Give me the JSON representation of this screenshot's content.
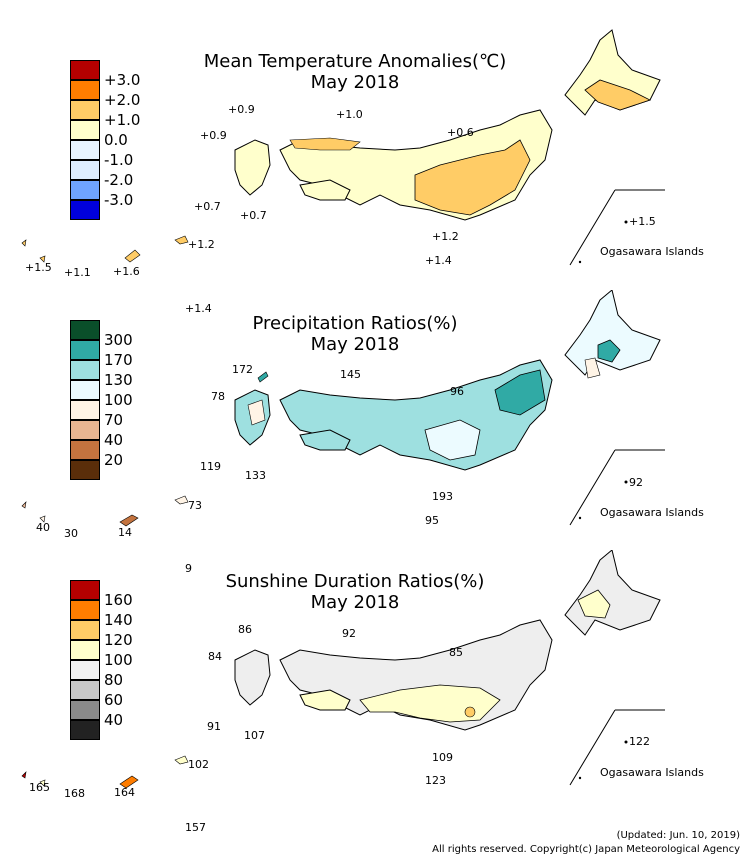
{
  "panels": [
    {
      "title_line1": "Mean Temperature Anomalies(℃)",
      "title_line2": "May 2018",
      "legend": [
        {
          "label": "+3.0",
          "color": "#b40000"
        },
        {
          "label": "+2.0",
          "color": "#ff7d00"
        },
        {
          "label": "+1.0",
          "color": "#ffcc66"
        },
        {
          "label": "0.0",
          "color": "#ffffcc"
        },
        {
          "label": "-1.0",
          "color": "#dff0ff"
        },
        {
          "label": "-2.0",
          "color": "#6fa4ff"
        },
        {
          "label": "-3.0",
          "color": "#0000dd"
        },
        {
          "label": "",
          "color": "#0000dd"
        }
      ],
      "labels": [
        "+0.9",
        "+0.9",
        "+1.0",
        "+0.6",
        "+0.7",
        "+0.7",
        "+1.2",
        "+1.4",
        "+1.5",
        "+1.1",
        "+1.6",
        "+1.2",
        "+1.4",
        "+1.5"
      ],
      "region_label": "Ogasawara Islands",
      "fill_main": "#ffffcc",
      "fill_accent": "#ffcc66"
    },
    {
      "title_line1": "Precipitation Ratios(%)",
      "title_line2": "May 2018",
      "legend": [
        {
          "label": "300",
          "color": "#0a4f2a"
        },
        {
          "label": "170",
          "color": "#30aaa5"
        },
        {
          "label": "130",
          "color": "#9ee0e0"
        },
        {
          "label": "100",
          "color": "#ecfbff"
        },
        {
          "label": "70",
          "color": "#fff4e6"
        },
        {
          "label": "40",
          "color": "#e9b592"
        },
        {
          "label": "20",
          "color": "#c3733f"
        },
        {
          "label": "",
          "color": "#5a2e0a"
        }
      ],
      "labels": [
        "172",
        "145",
        "78",
        "96",
        "119",
        "133",
        "193",
        "95",
        "40",
        "30",
        "14",
        "73",
        "9",
        "92"
      ],
      "region_label": "Ogasawara Islands",
      "fill_main": "#9ee0e0",
      "fill_accent": "#30aaa5"
    },
    {
      "title_line1": "Sunshine Duration Ratios(%)",
      "title_line2": "May 2018",
      "legend": [
        {
          "label": "160",
          "color": "#b40000"
        },
        {
          "label": "140",
          "color": "#ff7d00"
        },
        {
          "label": "120",
          "color": "#ffcc66"
        },
        {
          "label": "100",
          "color": "#ffffcc"
        },
        {
          "label": "80",
          "color": "#f2f2f2"
        },
        {
          "label": "60",
          "color": "#c8c8c8"
        },
        {
          "label": "40",
          "color": "#8a8a8a"
        },
        {
          "label": "",
          "color": "#222222"
        }
      ],
      "labels": [
        "86",
        "92",
        "84",
        "85",
        "91",
        "107",
        "109",
        "123",
        "165",
        "168",
        "164",
        "102",
        "157",
        "122"
      ],
      "region_label": "Ogasawara Islands",
      "fill_main": "#eeeeee",
      "fill_accent": "#ffffcc"
    }
  ],
  "footer": {
    "updated": "(Updated: Jun. 10, 2019)",
    "copyright": "All rights reserved. Copyright(c) Japan Meteorological Agency"
  }
}
